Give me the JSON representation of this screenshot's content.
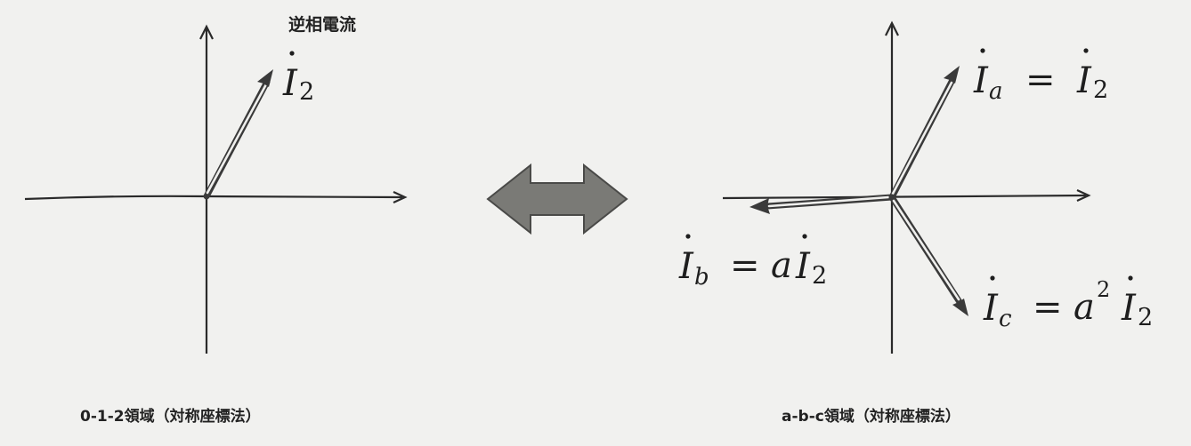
{
  "left_panel": {
    "title": "逆相電流",
    "vector_label": {
      "sym": "I",
      "sub": "2"
    },
    "caption": "0-1-2領域（対称座標法）"
  },
  "right_panel": {
    "labels": {
      "a": {
        "lhs": "I",
        "lhs_sub": "a",
        "eq": "=",
        "rhs": "I",
        "rhs_sub": "2"
      },
      "b": {
        "lhs": "I",
        "lhs_sub": "b",
        "eq": "=",
        "coef": "a",
        "rhs": "I",
        "rhs_sub": "2"
      },
      "c": {
        "lhs": "I",
        "lhs_sub": "c",
        "eq": "=",
        "coef": "a",
        "coef_sup": "2",
        "rhs": "I",
        "rhs_sub": "2"
      }
    },
    "caption": "a-b-c領域（対称座標法）"
  },
  "colors": {
    "background": "#f1f1ef",
    "ink": "#1e1e1e",
    "double_arrow": "#7a7a76"
  }
}
